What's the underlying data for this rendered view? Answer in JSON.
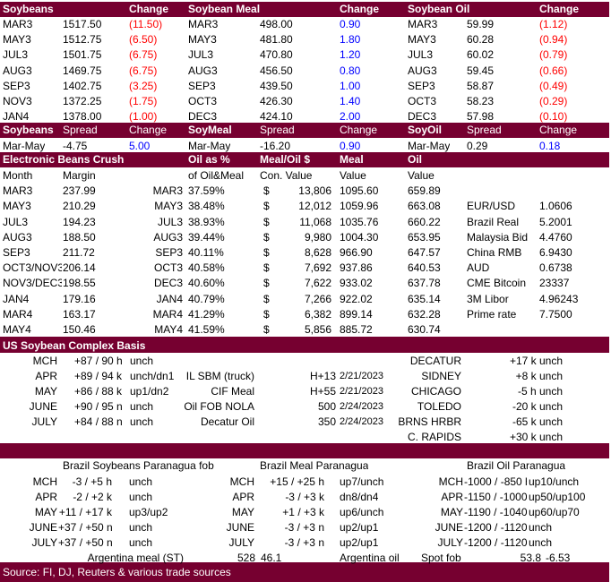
{
  "futures": {
    "headers": [
      "Soybeans",
      "",
      "Change",
      "Soybean Meal",
      "",
      "Change",
      "Soybean Oil",
      "",
      "Change"
    ],
    "rows": [
      [
        "MAR3",
        "1517.50",
        "(11.50)",
        "MAR3",
        "498.00",
        "0.90",
        "MAR3",
        "59.99",
        "(1.12)"
      ],
      [
        "MAY3",
        "1512.75",
        "(6.50)",
        "MAY3",
        "481.80",
        "1.80",
        "MAY3",
        "60.28",
        "(0.94)"
      ],
      [
        "JUL3",
        "1501.75",
        "(6.75)",
        "JUL3",
        "470.80",
        "1.20",
        "JUL3",
        "60.02",
        "(0.79)"
      ],
      [
        "AUG3",
        "1469.75",
        "(6.75)",
        "AUG3",
        "456.50",
        "0.80",
        "AUG3",
        "59.45",
        "(0.66)"
      ],
      [
        "SEP3",
        "1402.75",
        "(3.25)",
        "SEP3",
        "439.50",
        "1.00",
        "SEP3",
        "58.87",
        "(0.49)"
      ],
      [
        "NOV3",
        "1372.25",
        "(1.75)",
        "OCT3",
        "426.30",
        "1.40",
        "OCT3",
        "58.23",
        "(0.29)"
      ],
      [
        "JAN4",
        "1378.00",
        "(1.00)",
        "DEC3",
        "424.10",
        "2.00",
        "DEC3",
        "57.98",
        "(0.10)"
      ]
    ]
  },
  "spreads": {
    "headers": [
      "Soybeans",
      "Spread",
      "Change",
      "SoyMeal",
      "Spread",
      "Change",
      "SoyOil",
      "Spread",
      "Change"
    ],
    "row": [
      "Mar-May",
      "-4.75",
      "5.00",
      "Mar-May",
      "-16.20",
      "0.90",
      "Mar-May",
      "0.29",
      "0.18"
    ]
  },
  "crush": {
    "headers_top": [
      "Electronic Beans Crush",
      "Oil as %",
      "Meal/Oil $",
      "Meal",
      "Oil"
    ],
    "headers_sub": [
      "Month",
      "Margin",
      "of Oil&Meal",
      "Con. Value",
      "Value",
      "Value"
    ],
    "rows": [
      [
        "MAR3",
        "237.99",
        "MAR3",
        "37.59%",
        "$",
        "13,806",
        "1095.60",
        "659.89"
      ],
      [
        "MAY3",
        "210.29",
        "MAY3",
        "38.48%",
        "$",
        "12,012",
        "1059.96",
        "663.08"
      ],
      [
        "JUL3",
        "194.23",
        "JUL3",
        "38.93%",
        "$",
        "11,068",
        "1035.76",
        "660.22"
      ],
      [
        "AUG3",
        "188.50",
        "AUG3",
        "39.44%",
        "$",
        "9,980",
        "1004.30",
        "653.95"
      ],
      [
        "SEP3",
        "211.72",
        "SEP3",
        "40.11%",
        "$",
        "8,628",
        "966.90",
        "647.57"
      ],
      [
        "OCT3/NOV3",
        "206.14",
        "OCT3",
        "40.58%",
        "$",
        "7,692",
        "937.86",
        "640.53"
      ],
      [
        "NOV3/DEC3",
        "198.55",
        "DEC3",
        "40.60%",
        "$",
        "7,622",
        "933.02",
        "637.78"
      ],
      [
        "JAN4",
        "179.16",
        "JAN4",
        "40.79%",
        "$",
        "7,266",
        "922.02",
        "635.14"
      ],
      [
        "MAR4",
        "163.17",
        "MAR4",
        "41.29%",
        "$",
        "6,382",
        "899.14",
        "632.28"
      ],
      [
        "MAY4",
        "150.46",
        "MAY4",
        "41.59%",
        "$",
        "5,856",
        "885.72",
        "630.74"
      ]
    ],
    "fx": [
      [
        "EUR/USD",
        "1.0606"
      ],
      [
        "Brazil Real",
        "5.2001"
      ],
      [
        "Malaysia Bid",
        "4.4760"
      ],
      [
        "China RMB",
        "6.9430"
      ],
      [
        "AUD",
        "0.6738"
      ],
      [
        "CME Bitcoin",
        "23337"
      ],
      [
        "3M Libor",
        "4.96243"
      ],
      [
        "Prime rate",
        "7.7500"
      ]
    ]
  },
  "basis": {
    "title": "US Soybean Complex Basis",
    "left": [
      [
        "MCH",
        "+87 / 90 h",
        "unch"
      ],
      [
        "APR",
        "+89 / 94 k",
        "unch/dn1"
      ],
      [
        "MAY",
        "+86 / 88 k",
        "up1/dn2"
      ],
      [
        "JUNE",
        "+90 / 95 n",
        "unch"
      ],
      [
        "JULY",
        "+84 / 88 n",
        "unch"
      ]
    ],
    "mid": [
      [
        "IL SBM (truck)",
        "H+13",
        "2/21/2023"
      ],
      [
        "CIF Meal",
        "H+55",
        "2/21/2023"
      ],
      [
        "Oil FOB NOLA",
        "500",
        "2/24/2023"
      ],
      [
        "Decatur Oil",
        "350",
        "2/24/2023"
      ]
    ],
    "right": [
      [
        "DECATUR",
        "+17 k unch"
      ],
      [
        "SIDNEY",
        "+8 k unch"
      ],
      [
        "CHICAGO",
        "-5 h unch"
      ],
      [
        "TOLEDO",
        "-20 k unch"
      ],
      [
        "BRNS HRBR",
        "-65 k unch"
      ],
      [
        "C. RAPIDS",
        "+30 k unch"
      ]
    ]
  },
  "brazil": {
    "headers": [
      "Brazil Soybeans Paranagua fob",
      "Brazil Meal Paranagua",
      "Brazil Oil Paranagua"
    ],
    "rows": [
      [
        "MCH",
        "-3 / +5 h",
        "unch",
        "MCH",
        "+15 / +25 h",
        "up7/unch",
        "MCH",
        "-1000 / -850 h",
        "up10/unch"
      ],
      [
        "APR",
        "-2 / +2 k",
        "unch",
        "APR",
        "-3 / +3 k",
        "dn8/dn4",
        "APR",
        "-1150 / -1000 k",
        "up50/up100"
      ],
      [
        "MAY",
        "+11 / +17 k",
        "up3/up2",
        "MAY",
        "+1 / +3 k",
        "up6/unch",
        "MAY",
        "-1190 / -1040 k",
        "up60/up70"
      ],
      [
        "JUNE",
        "+37 / +50 n",
        "unch",
        "JUNE",
        "-3 / +3 n",
        "up2/up1",
        "JUNE",
        "-1200 / -1120 n",
        "unch"
      ],
      [
        "JULY",
        "+37 / +50 n",
        "unch",
        "JULY",
        "-3 / +3 n",
        "up2/up1",
        "JULY",
        "-1200 / -1120 n",
        "unch"
      ]
    ],
    "argentina": [
      "Argentina meal (ST)",
      "528",
      "46.1",
      "Argentina oil",
      "Spot fob",
      "53.8",
      "-6.53"
    ]
  },
  "source": "Source: FI, DJ, Reuters & various trade sources",
  "colors": {
    "maroon": "#760030",
    "negative": "#ff0000",
    "positive": "#0000ff"
  }
}
